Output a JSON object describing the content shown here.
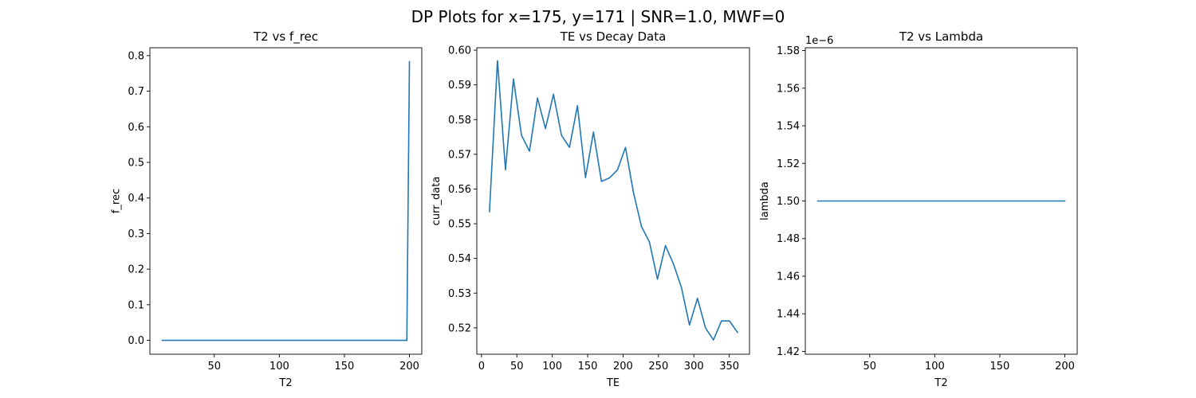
{
  "figure": {
    "suptitle": "DP Plots for x=175, y=171 | SNR=1.0, MWF=0"
  },
  "chart_data": [
    {
      "type": "line",
      "title": "T2 vs f_rec",
      "xlabel": "T2",
      "ylabel": "f_rec",
      "xlim": [
        0.5,
        209.5
      ],
      "ylim": [
        -0.039,
        0.822
      ],
      "xticks": [
        50,
        100,
        150,
        200
      ],
      "xtick_labels": [
        "50",
        "100",
        "150",
        "200"
      ],
      "yticks": [
        0.0,
        0.1,
        0.2,
        0.3,
        0.4,
        0.5,
        0.6,
        0.7,
        0.8
      ],
      "ytick_labels": [
        "0.0",
        "0.1",
        "0.2",
        "0.3",
        "0.4",
        "0.5",
        "0.6",
        "0.7",
        "0.8"
      ],
      "color": "#1f77b4",
      "series": [
        {
          "x": [
            10,
            100,
            198,
            200
          ],
          "y": [
            0.0,
            0.0,
            0.0,
            0.783
          ]
        }
      ]
    },
    {
      "type": "line",
      "title": "TE vs Decay Data",
      "xlabel": "TE",
      "ylabel": "curr_data",
      "xlim": [
        -6.6,
        378.6
      ],
      "ylim": [
        0.5124,
        0.6007
      ],
      "xticks": [
        0,
        50,
        100,
        150,
        200,
        250,
        300,
        350
      ],
      "xtick_labels": [
        "0",
        "50",
        "100",
        "150",
        "200",
        "250",
        "300",
        "350"
      ],
      "yticks": [
        0.52,
        0.53,
        0.54,
        0.55,
        0.56,
        0.57,
        0.58,
        0.59,
        0.6
      ],
      "ytick_labels": [
        "0.52",
        "0.53",
        "0.54",
        "0.55",
        "0.56",
        "0.57",
        "0.58",
        "0.59",
        "0.60"
      ],
      "color": "#1f77b4",
      "series": [
        {
          "x": [
            11.3,
            22.6,
            33.9,
            45.2,
            56.5,
            67.8,
            79.1,
            90.4,
            101.7,
            113,
            124.3,
            135.6,
            146.9,
            158.2,
            169.5,
            180.8,
            192.1,
            203.4,
            214.7,
            226,
            237.3,
            248.6,
            259.9,
            271.2,
            282.5,
            293.8,
            305.1,
            316.4,
            327.7,
            339,
            350.3,
            361.6
          ],
          "y": [
            0.5535,
            0.597,
            0.5655,
            0.5917,
            0.5755,
            0.5709,
            0.5862,
            0.5774,
            0.5873,
            0.5755,
            0.572,
            0.584,
            0.5633,
            0.5764,
            0.5622,
            0.5632,
            0.5655,
            0.572,
            0.559,
            0.5492,
            0.5447,
            0.534,
            0.5437,
            0.5384,
            0.5316,
            0.5208,
            0.5285,
            0.52,
            0.5165,
            0.522,
            0.522,
            0.5187
          ]
        }
      ]
    },
    {
      "type": "line",
      "title": "T2 vs Lambda",
      "xlabel": "T2",
      "ylabel": "lambda",
      "offset_text": "1e−6",
      "xlim": [
        0.5,
        209.5
      ],
      "ylim": [
        1.4185,
        1.5815
      ],
      "xticks": [
        50,
        100,
        150,
        200
      ],
      "xtick_labels": [
        "50",
        "100",
        "150",
        "200"
      ],
      "yticks": [
        1.42,
        1.44,
        1.46,
        1.48,
        1.5,
        1.52,
        1.54,
        1.56,
        1.58
      ],
      "ytick_labels": [
        "1.42",
        "1.44",
        "1.46",
        "1.48",
        "1.50",
        "1.52",
        "1.54",
        "1.56",
        "1.58"
      ],
      "color": "#1f77b4",
      "series": [
        {
          "x": [
            10,
            200
          ],
          "y": [
            1.5,
            1.5
          ]
        }
      ]
    }
  ]
}
